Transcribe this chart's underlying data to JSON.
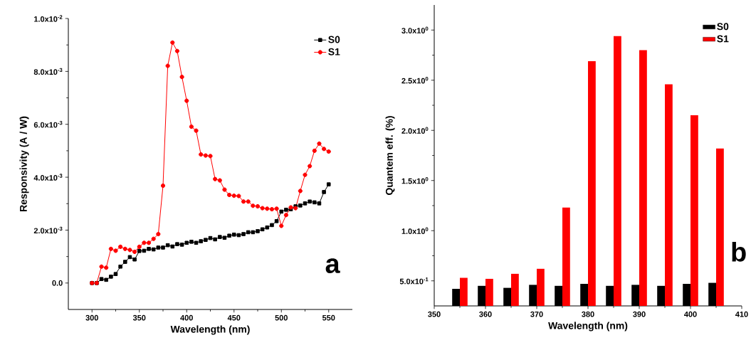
{
  "chart_data": [
    {
      "type": "line",
      "xlabel": "Wavelength (nm)",
      "ylabel": "Responsivity (A / W)",
      "annotations": [
        "a"
      ],
      "legend": "top right",
      "x": [
        300,
        305,
        310,
        315,
        320,
        325,
        330,
        335,
        340,
        345,
        350,
        355,
        360,
        365,
        370,
        375,
        380,
        385,
        390,
        395,
        400,
        405,
        410,
        415,
        420,
        425,
        430,
        435,
        440,
        445,
        450,
        455,
        460,
        465,
        470,
        475,
        480,
        485,
        490,
        495,
        500,
        505,
        510,
        515,
        520,
        525,
        530,
        535,
        540,
        545,
        550
      ],
      "series": [
        {
          "name": "S0",
          "color": "#000000",
          "marker": "square",
          "values": [
            0,
            0,
            0.00015,
            0.00012,
            0.00024,
            0.00034,
            0.00062,
            0.0008,
            0.00098,
            0.00089,
            0.00121,
            0.00122,
            0.00129,
            0.00127,
            0.00134,
            0.00134,
            0.00143,
            0.00138,
            0.00147,
            0.00145,
            0.00152,
            0.00156,
            0.00152,
            0.00158,
            0.00163,
            0.0017,
            0.00165,
            0.00174,
            0.00171,
            0.00179,
            0.00183,
            0.00181,
            0.00185,
            0.00192,
            0.00192,
            0.00196,
            0.00203,
            0.0021,
            0.00219,
            0.00234,
            0.0027,
            0.00277,
            0.00279,
            0.0029,
            0.00293,
            0.00301,
            0.00308,
            0.00305,
            0.00301,
            0.00344,
            0.00373
          ]
        },
        {
          "name": "S1",
          "color": "#ff0000",
          "marker": "circle",
          "values": [
            0,
            0,
            0.00062,
            0.00058,
            0.00129,
            0.00122,
            0.00137,
            0.00129,
            0.00125,
            0.00118,
            0.00137,
            0.00152,
            0.00152,
            0.00167,
            0.00185,
            0.00368,
            0.00821,
            0.00909,
            0.00877,
            0.00779,
            0.00689,
            0.00591,
            0.00576,
            0.00486,
            0.00482,
            0.0048,
            0.00393,
            0.00388,
            0.00353,
            0.00333,
            0.0033,
            0.00329,
            0.00308,
            0.00308,
            0.00292,
            0.0029,
            0.00283,
            0.00281,
            0.00279,
            0.00281,
            0.00216,
            0.00257,
            0.00286,
            0.00283,
            0.00348,
            0.00409,
            0.00442,
            0.005,
            0.00527,
            0.00507,
            0.00497
          ]
        }
      ],
      "xlim": [
        275,
        575
      ],
      "ylim": [
        -0.001,
        0.01
      ],
      "xticks": [
        300,
        350,
        400,
        450,
        500,
        550
      ],
      "yticks": [
        {
          "value": 0,
          "label": "0.0"
        },
        {
          "value": 0.002,
          "label": "2.0x10$^{-3}$"
        },
        {
          "value": 0.004,
          "label": "4.0x10$^{-3}$"
        },
        {
          "value": 0.006,
          "label": "6.0x10$^{-3}$"
        },
        {
          "value": 0.008,
          "label": "8.0x10$^{-3}$"
        },
        {
          "value": 0.01,
          "label": "1.0x10$^{-2}$"
        }
      ]
    },
    {
      "type": "bar",
      "xlabel": "Wavelength (nm)",
      "ylabel": "Quantem eff. (%)",
      "annotations": [
        "b"
      ],
      "legend": "top right",
      "x": [
        355,
        360,
        365,
        370,
        375,
        380,
        385,
        390,
        395,
        400,
        405
      ],
      "series": [
        {
          "name": "S0",
          "color": "#000000",
          "values": [
            0.42,
            0.45,
            0.43,
            0.46,
            0.45,
            0.47,
            0.45,
            0.46,
            0.45,
            0.47,
            0.48
          ]
        },
        {
          "name": "S1",
          "color": "#ff0000",
          "values": [
            0.53,
            0.52,
            0.57,
            0.62,
            1.23,
            2.69,
            2.94,
            2.8,
            2.46,
            2.15,
            1.82
          ]
        }
      ],
      "xlim": [
        350,
        410
      ],
      "ylim": [
        0.25,
        3.25
      ],
      "xticks": [
        350,
        360,
        370,
        380,
        390,
        400,
        410
      ],
      "yticks": [
        {
          "value": 0.5,
          "label": "5.0x10$^{-1}$"
        },
        {
          "value": 1.0,
          "label": "1.0x10$^{0}$"
        },
        {
          "value": 1.5,
          "label": "1.5x10$^{0}$"
        },
        {
          "value": 2.0,
          "label": "2.0x10$^{0}$"
        },
        {
          "value": 2.5,
          "label": "2.5x10$^{0}$"
        },
        {
          "value": 3.0,
          "label": "3.0x10$^{0}$"
        }
      ]
    }
  ]
}
